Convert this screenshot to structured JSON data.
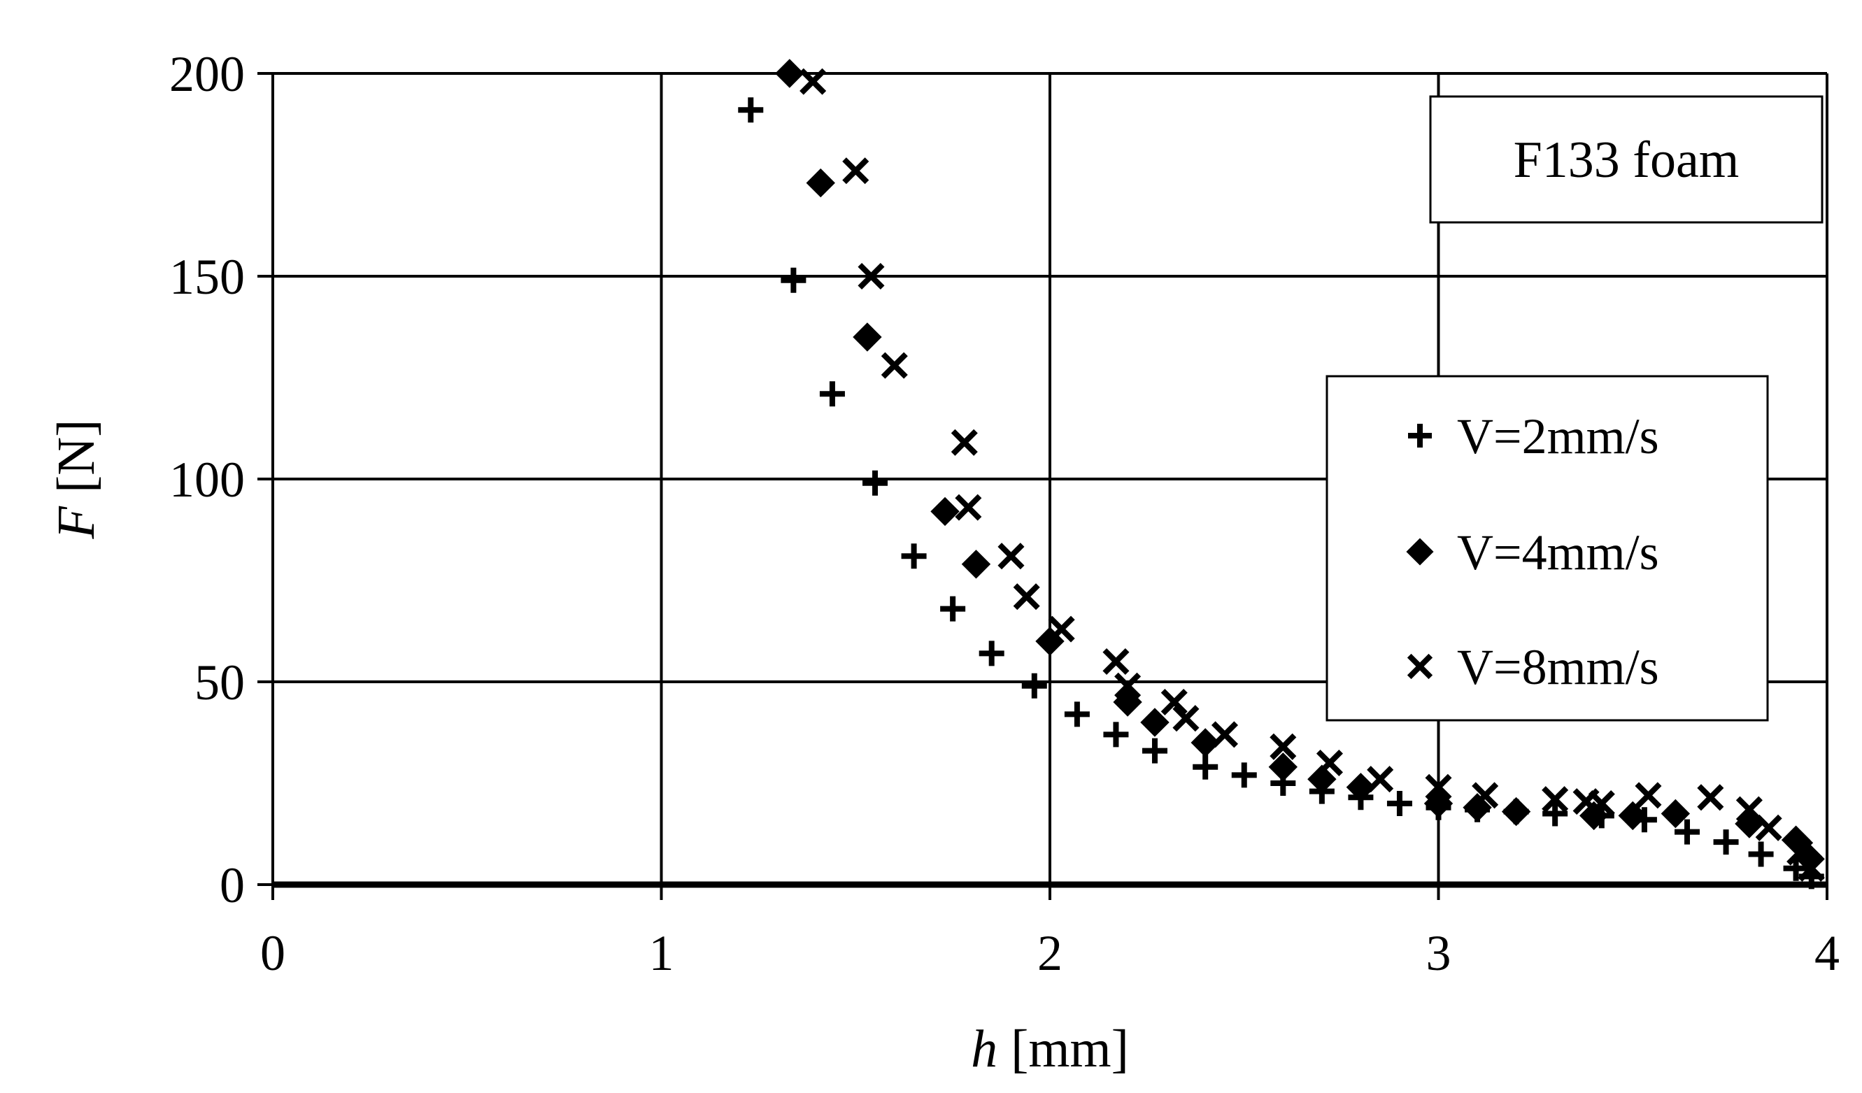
{
  "chart_data": {
    "type": "scatter",
    "title": "",
    "annotation": "F133 foam",
    "xlabel_var": "h",
    "xlabel_unit": " [mm]",
    "ylabel_var": "F",
    "ylabel_unit": " [N]",
    "xlim": [
      0,
      4
    ],
    "ylim": [
      0,
      200
    ],
    "x_ticks": [
      0,
      1,
      2,
      3,
      4
    ],
    "y_ticks": [
      0,
      50,
      100,
      150,
      200
    ],
    "x_tick_labels": [
      "0",
      "1",
      "2",
      "3",
      "4"
    ],
    "y_tick_labels": [
      "0",
      "50",
      "100",
      "150",
      "200"
    ],
    "grid": true,
    "legend_position": "middle-right",
    "series": [
      {
        "name": "V=2mm/s",
        "marker": "plus",
        "points": [
          [
            1.23,
            191
          ],
          [
            1.34,
            149
          ],
          [
            1.44,
            121
          ],
          [
            1.55,
            99
          ],
          [
            1.65,
            81
          ],
          [
            1.75,
            68
          ],
          [
            1.85,
            57
          ],
          [
            1.96,
            49
          ],
          [
            2.07,
            42
          ],
          [
            2.17,
            37
          ],
          [
            2.27,
            33
          ],
          [
            2.4,
            29
          ],
          [
            2.5,
            27
          ],
          [
            2.6,
            25
          ],
          [
            2.7,
            23
          ],
          [
            2.8,
            21.5
          ],
          [
            2.9,
            20
          ],
          [
            3.0,
            19
          ],
          [
            3.1,
            18.5
          ],
          [
            3.2,
            18
          ],
          [
            3.3,
            17.5
          ],
          [
            3.42,
            17
          ],
          [
            3.53,
            16
          ],
          [
            3.64,
            13
          ],
          [
            3.74,
            10.5
          ],
          [
            3.83,
            7.5
          ],
          [
            3.92,
            4
          ],
          [
            3.96,
            2
          ]
        ]
      },
      {
        "name": "V=4mm/s",
        "marker": "diamond",
        "points": [
          [
            1.33,
            200
          ],
          [
            1.41,
            173
          ],
          [
            1.53,
            135
          ],
          [
            1.73,
            92
          ],
          [
            1.81,
            79
          ],
          [
            2.0,
            60
          ],
          [
            2.2,
            45
          ],
          [
            2.27,
            40
          ],
          [
            2.4,
            35
          ],
          [
            2.6,
            29
          ],
          [
            2.7,
            26
          ],
          [
            2.8,
            24
          ],
          [
            3.0,
            20
          ],
          [
            3.1,
            19
          ],
          [
            3.2,
            18
          ],
          [
            3.4,
            17
          ],
          [
            3.5,
            17
          ],
          [
            3.61,
            17.5
          ],
          [
            3.8,
            15
          ],
          [
            3.92,
            11
          ],
          [
            3.95,
            7
          ]
        ]
      },
      {
        "name": "V=8mm/s",
        "marker": "cross",
        "points": [
          [
            1.39,
            198
          ],
          [
            1.5,
            176
          ],
          [
            1.54,
            150
          ],
          [
            1.6,
            128
          ],
          [
            1.78,
            109
          ],
          [
            1.79,
            93
          ],
          [
            1.9,
            81
          ],
          [
            1.94,
            71
          ],
          [
            2.03,
            63
          ],
          [
            2.17,
            55
          ],
          [
            2.2,
            49
          ],
          [
            2.32,
            45
          ],
          [
            2.35,
            41
          ],
          [
            2.45,
            37
          ],
          [
            2.6,
            34
          ],
          [
            2.72,
            30
          ],
          [
            2.85,
            26
          ],
          [
            3.0,
            24
          ],
          [
            3.12,
            22
          ],
          [
            3.3,
            21
          ],
          [
            3.38,
            20.5
          ],
          [
            3.42,
            20
          ],
          [
            3.54,
            22
          ],
          [
            3.7,
            21.5
          ],
          [
            3.8,
            18.5
          ],
          [
            3.85,
            14
          ],
          [
            3.93,
            8
          ],
          [
            3.96,
            4
          ]
        ]
      }
    ]
  }
}
